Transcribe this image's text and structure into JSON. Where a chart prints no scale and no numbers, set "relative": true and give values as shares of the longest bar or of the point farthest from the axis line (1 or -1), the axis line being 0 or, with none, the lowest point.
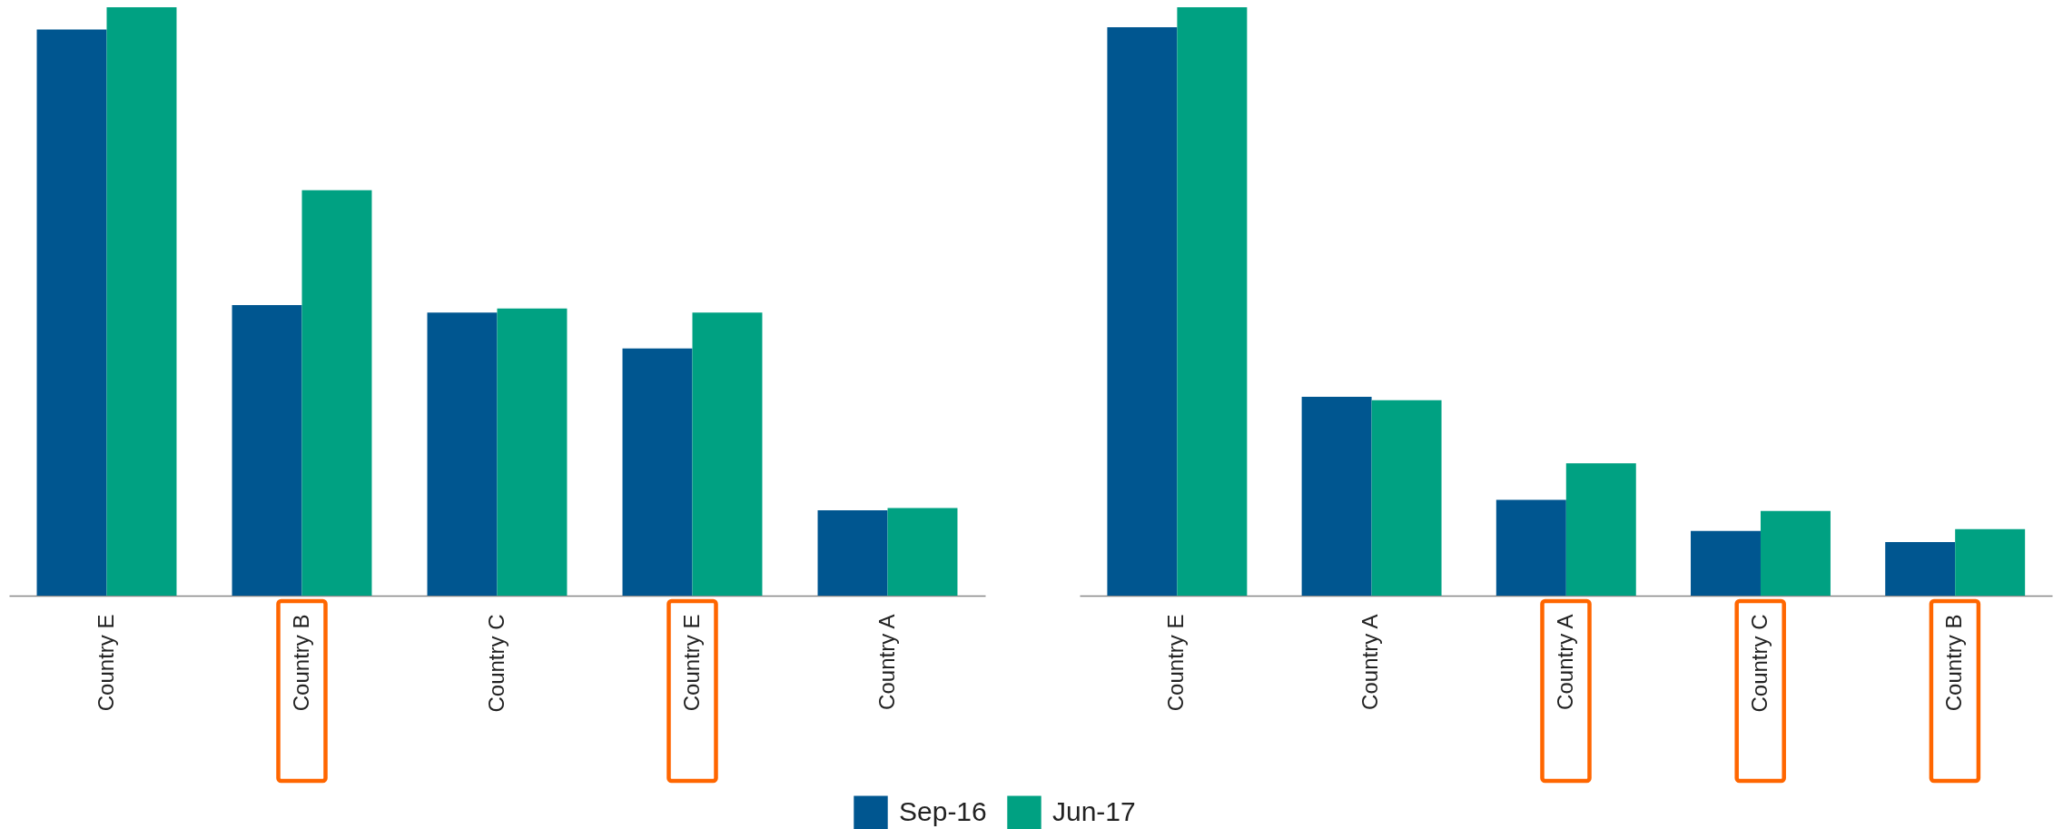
{
  "chart_data": [
    {
      "type": "bar",
      "relative": true,
      "categories": [
        "Country E",
        "Country B",
        "Country C",
        "Country E",
        "Country A"
      ],
      "series": [
        {
          "name": "Sep-16",
          "color": "#005690",
          "values": [
            0.962,
            0.494,
            0.481,
            0.42,
            0.145
          ]
        },
        {
          "name": "Jun-17",
          "color": "#00a182",
          "values": [
            1,
            0.689,
            0.488,
            0.481,
            0.149
          ]
        }
      ],
      "legend": "bottom"
    },
    {
      "type": "bar",
      "relative": true,
      "categories": [
        "Country E",
        "Country A",
        "Country A",
        "Country C",
        "Country B"
      ],
      "series": [
        {
          "name": "Sep-16",
          "color": "#005690",
          "values": [
            0.966,
            0.338,
            0.163,
            0.11,
            0.091
          ]
        },
        {
          "name": "Jun-17",
          "color": "#00a182",
          "values": [
            1,
            0.332,
            0.225,
            0.144,
            0.113
          ]
        }
      ],
      "legend": "bottom"
    }
  ]
}
